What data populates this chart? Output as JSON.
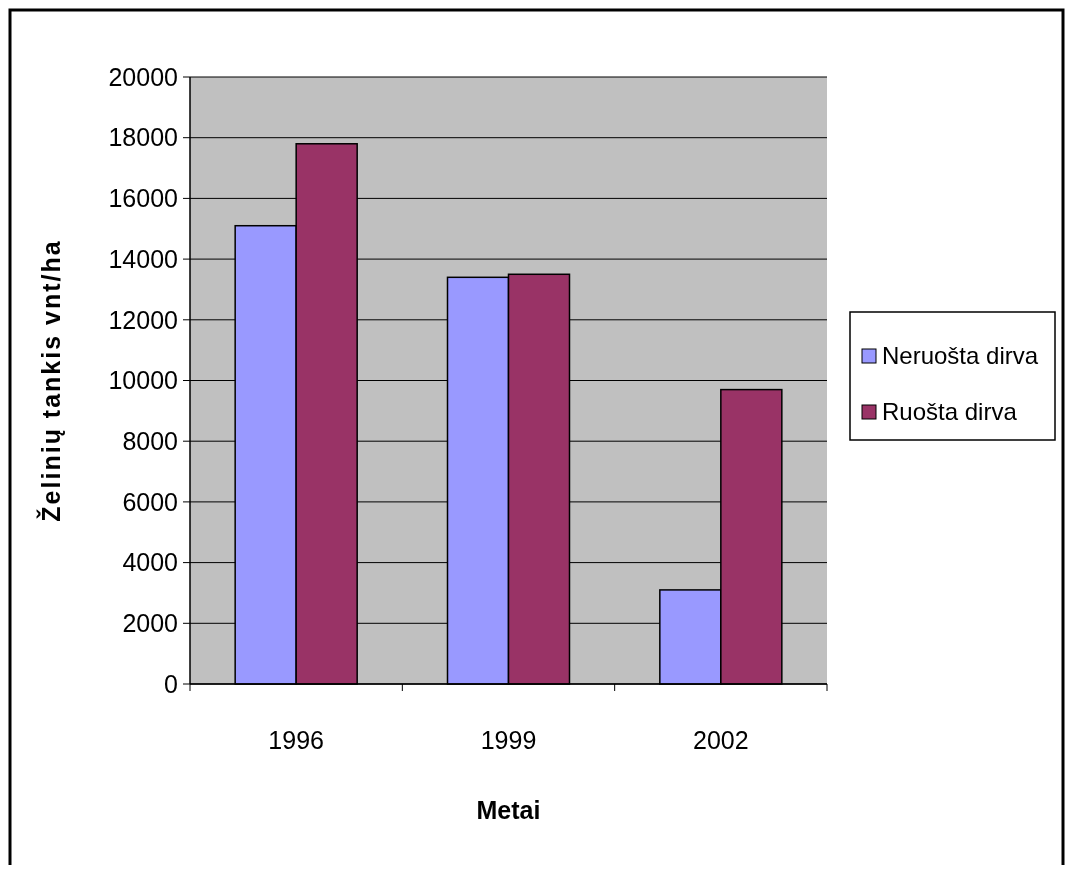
{
  "chart_data": {
    "type": "bar",
    "categories": [
      "1996",
      "1999",
      "2002"
    ],
    "xlabel": "Metai",
    "ylabel": "Želinių tankis vnt/ha",
    "ylim": [
      0,
      20000
    ],
    "yticks": [
      0,
      2000,
      4000,
      6000,
      8000,
      10000,
      12000,
      14000,
      16000,
      18000,
      20000
    ],
    "grid": "y",
    "legend": "right",
    "series": [
      {
        "name": "Neruošta dirva",
        "color": "#9999ff",
        "values": [
          15100,
          13400,
          3100
        ]
      },
      {
        "name": "Ruošta dirva",
        "color": "#993366",
        "values": [
          17800,
          13500,
          9700
        ]
      }
    ]
  }
}
